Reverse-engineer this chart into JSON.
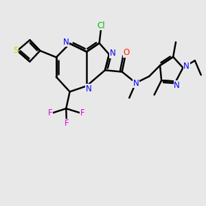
{
  "background_color": "#e8e8e8",
  "bond_color": "#000000",
  "bond_width": 1.8,
  "atom_colors": {
    "N": "#0000ff",
    "S": "#cccc00",
    "O": "#ff2200",
    "Cl": "#00bb00",
    "F": "#dd00dd",
    "C": "#000000"
  },
  "font_size": 8.5,
  "figsize": [
    3.0,
    3.0
  ],
  "dpi": 100
}
